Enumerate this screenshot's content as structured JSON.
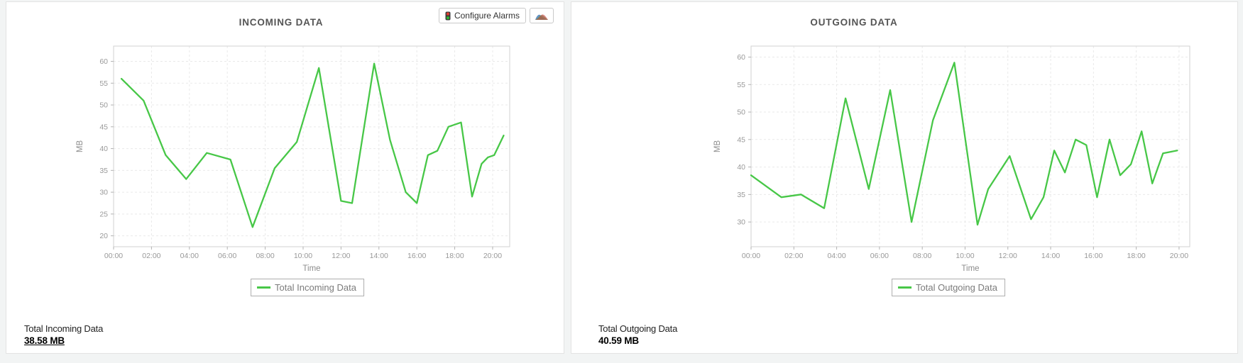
{
  "accent_color": "#47c747",
  "toolbar": {
    "configure_alarms_label": "Configure Alarms"
  },
  "panels": [
    {
      "summary_label": "Total Incoming Data",
      "summary_value": "38.58 MB",
      "summary_underlined": true
    },
    {
      "summary_label": "Total Outgoing Data",
      "summary_value": "40.59 MB",
      "summary_underlined": false
    }
  ],
  "chart_data": [
    {
      "type": "line",
      "title": "INCOMING DATA",
      "xlabel": "Time",
      "ylabel": "MB",
      "grid": true,
      "legend_position": "bottom",
      "ylim": [
        17.5,
        63.5
      ],
      "yticks": [
        20,
        25,
        30,
        35,
        40,
        45,
        50,
        55,
        60
      ],
      "xticks": [
        "00:00",
        "02:00",
        "04:00",
        "06:00",
        "08:00",
        "10:00",
        "12:00",
        "14:00",
        "16:00",
        "18:00",
        "20:00"
      ],
      "xlim_hours": [
        0,
        20.9
      ],
      "series": [
        {
          "name": "Total Incoming Data",
          "color": "#47c747",
          "points": [
            {
              "time": "00:25",
              "mb": 56
            },
            {
              "time": "01:35",
              "mb": 51
            },
            {
              "time": "02:45",
              "mb": 38.5
            },
            {
              "time": "03:50",
              "mb": 33
            },
            {
              "time": "04:55",
              "mb": 39
            },
            {
              "time": "06:10",
              "mb": 37.5
            },
            {
              "time": "07:20",
              "mb": 22
            },
            {
              "time": "08:30",
              "mb": 35.5
            },
            {
              "time": "09:40",
              "mb": 41.5
            },
            {
              "time": "10:50",
              "mb": 58.5
            },
            {
              "time": "12:00",
              "mb": 28
            },
            {
              "time": "12:35",
              "mb": 27.5
            },
            {
              "time": "13:45",
              "mb": 59.5
            },
            {
              "time": "14:35",
              "mb": 42
            },
            {
              "time": "15:25",
              "mb": 30
            },
            {
              "time": "16:00",
              "mb": 27.5
            },
            {
              "time": "16:35",
              "mb": 38.5
            },
            {
              "time": "17:05",
              "mb": 39.5
            },
            {
              "time": "17:40",
              "mb": 45
            },
            {
              "time": "18:20",
              "mb": 46
            },
            {
              "time": "18:55",
              "mb": 29
            },
            {
              "time": "19:25",
              "mb": 36.5
            },
            {
              "time": "19:45",
              "mb": 38
            },
            {
              "time": "20:05",
              "mb": 38.5
            },
            {
              "time": "20:35",
              "mb": 43
            }
          ]
        }
      ]
    },
    {
      "type": "line",
      "title": "OUTGOING DATA",
      "xlabel": "Time",
      "ylabel": "MB",
      "grid": true,
      "legend_position": "bottom",
      "ylim": [
        25.5,
        62
      ],
      "yticks": [
        30,
        35,
        40,
        45,
        50,
        55,
        60
      ],
      "xticks": [
        "00:00",
        "02:00",
        "04:00",
        "06:00",
        "08:00",
        "10:00",
        "12:00",
        "14:00",
        "16:00",
        "18:00",
        "20:00"
      ],
      "xlim_hours": [
        0,
        20.5
      ],
      "series": [
        {
          "name": "Total Outgoing Data",
          "color": "#47c747",
          "points": [
            {
              "time": "00:00",
              "mb": 38.5
            },
            {
              "time": "01:25",
              "mb": 34.5
            },
            {
              "time": "02:20",
              "mb": 35
            },
            {
              "time": "03:25",
              "mb": 32.5
            },
            {
              "time": "04:25",
              "mb": 52.5
            },
            {
              "time": "05:30",
              "mb": 36
            },
            {
              "time": "06:30",
              "mb": 54
            },
            {
              "time": "07:30",
              "mb": 30
            },
            {
              "time": "08:30",
              "mb": 48.5
            },
            {
              "time": "09:30",
              "mb": 59
            },
            {
              "time": "10:35",
              "mb": 29.5
            },
            {
              "time": "11:05",
              "mb": 36
            },
            {
              "time": "12:05",
              "mb": 42
            },
            {
              "time": "13:05",
              "mb": 30.5
            },
            {
              "time": "13:40",
              "mb": 34.5
            },
            {
              "time": "14:10",
              "mb": 43
            },
            {
              "time": "14:40",
              "mb": 39
            },
            {
              "time": "15:10",
              "mb": 45
            },
            {
              "time": "15:40",
              "mb": 44
            },
            {
              "time": "16:10",
              "mb": 34.5
            },
            {
              "time": "16:45",
              "mb": 45
            },
            {
              "time": "17:15",
              "mb": 38.5
            },
            {
              "time": "17:45",
              "mb": 40.5
            },
            {
              "time": "18:15",
              "mb": 46.5
            },
            {
              "time": "18:45",
              "mb": 37
            },
            {
              "time": "19:15",
              "mb": 42.5
            },
            {
              "time": "19:55",
              "mb": 43
            }
          ]
        }
      ]
    }
  ]
}
